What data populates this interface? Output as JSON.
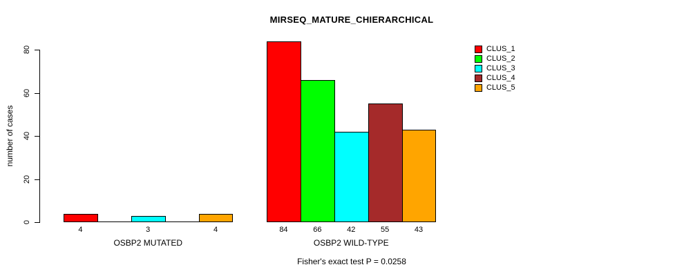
{
  "chart_data": {
    "type": "bar",
    "title": "MIRSEQ_MATURE_CHIERARCHICAL",
    "ylabel": "number of cases",
    "xlabel": "",
    "ylim": [
      0,
      80
    ],
    "yticks": [
      0,
      20,
      40,
      60,
      80
    ],
    "grid": false,
    "legend_position": "top-right",
    "legend": [
      {
        "label": "CLUS_1",
        "color": "#FF0000"
      },
      {
        "label": "CLUS_2",
        "color": "#00FF00"
      },
      {
        "label": "CLUS_3",
        "color": "#00FFFF"
      },
      {
        "label": "CLUS_4",
        "color": "#A52A2A"
      },
      {
        "label": "CLUS_5",
        "color": "#FFA500"
      }
    ],
    "groups": [
      {
        "label": "OSBP2 MUTATED",
        "values": [
          4,
          0,
          3,
          0,
          4
        ],
        "bar_labels": [
          "4",
          "",
          "3",
          "",
          "4"
        ]
      },
      {
        "label": "OSBP2 WILD-TYPE",
        "values": [
          84,
          66,
          42,
          55,
          43
        ],
        "bar_labels": [
          "84",
          "66",
          "42",
          "55",
          "43"
        ]
      }
    ],
    "annotation": "Fisher's exact test P = 0.0258"
  }
}
